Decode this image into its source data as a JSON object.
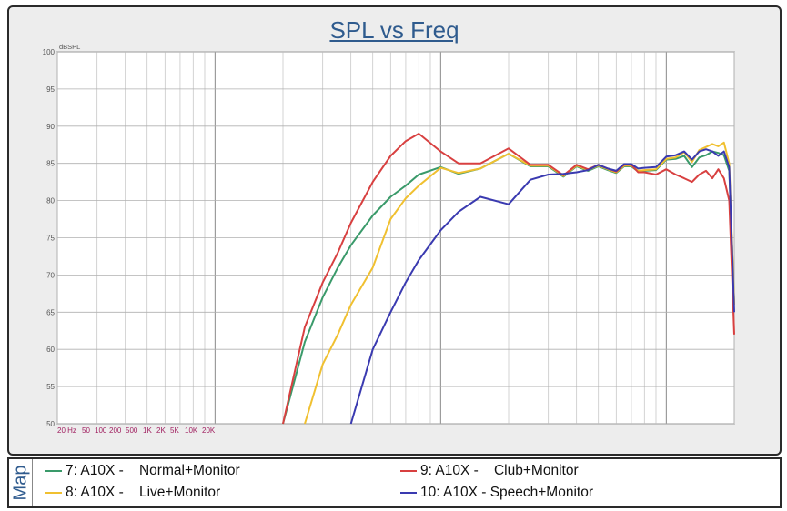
{
  "chart_data": {
    "type": "line",
    "title": "SPL vs Freq",
    "ylabel": "dBSPL",
    "ylim": [
      50,
      100
    ],
    "yticks": [
      "50",
      "55",
      "60",
      "65",
      "70",
      "75",
      "80",
      "85",
      "90",
      "95",
      "100"
    ],
    "xlim": [
      20,
      20000
    ],
    "xscale": "log",
    "xtick_labels": [
      "20 Hz",
      "50",
      "100",
      "200",
      "500",
      "1K",
      "2K",
      "5K",
      "10K",
      "20K"
    ],
    "grid": true,
    "legend_tab": "Map",
    "series": [
      {
        "name": "7: A10X -    Normal+Monitor",
        "color": "#3a9a6a",
        "x": [
          200,
          250,
          300,
          350,
          400,
          500,
          600,
          700,
          800,
          1000,
          1200,
          1500,
          2000,
          2500,
          3000,
          3500,
          4000,
          4500,
          5000,
          5500,
          6000,
          6500,
          7000,
          7500,
          8000,
          9000,
          10000,
          11000,
          12000,
          13000,
          14000,
          15000,
          16000,
          17000,
          18000,
          19000,
          20000
        ],
        "y": [
          50,
          61,
          67,
          71,
          74,
          78,
          80.5,
          82,
          83.5,
          84.5,
          83.6,
          84.3,
          86.3,
          84.6,
          84.6,
          83.2,
          84.6,
          84,
          84.6,
          84.1,
          83.7,
          84.6,
          84.6,
          83.9,
          84,
          84.1,
          85.5,
          85.6,
          86,
          84.5,
          85.8,
          86.1,
          86.6,
          86.4,
          86.1,
          84,
          66
        ]
      },
      {
        "name": "8: A10X -    Live+Monitor",
        "color": "#f0c030",
        "x": [
          250,
          300,
          350,
          400,
          500,
          600,
          700,
          800,
          1000,
          1200,
          1500,
          2000,
          2500,
          3000,
          3500,
          4000,
          4500,
          5000,
          5500,
          6000,
          6500,
          7000,
          7500,
          8000,
          9000,
          10000,
          11000,
          12000,
          13000,
          14000,
          15000,
          16000,
          17000,
          18000,
          19000,
          20000
        ],
        "y": [
          50,
          58,
          62,
          66,
          71,
          77.5,
          80.3,
          82,
          84.4,
          83.7,
          84.3,
          86.3,
          84.7,
          84.7,
          83.3,
          84.7,
          84.1,
          84.7,
          84.2,
          83.8,
          84.7,
          84.7,
          84,
          84.1,
          84.2,
          85.6,
          85.8,
          86.5,
          85.2,
          86.8,
          87.2,
          87.6,
          87.3,
          87.8,
          85,
          66
        ]
      },
      {
        "name": "9: A10X -    Club+Monitor",
        "color": "#d84040",
        "x": [
          200,
          250,
          300,
          350,
          400,
          500,
          600,
          700,
          800,
          1000,
          1200,
          1500,
          2000,
          2500,
          3000,
          3500,
          4000,
          4500,
          5000,
          5500,
          6000,
          6500,
          7000,
          7500,
          8000,
          9000,
          10000,
          11000,
          12000,
          13000,
          14000,
          15000,
          16000,
          17000,
          18000,
          19000,
          20000
        ],
        "y": [
          50,
          63,
          69,
          73,
          77,
          82.5,
          86,
          88,
          89,
          86.6,
          85,
          85,
          87,
          84.8,
          84.8,
          83.4,
          84.8,
          84.2,
          84.8,
          84.3,
          83.9,
          84.8,
          84.8,
          83.8,
          83.8,
          83.5,
          84.2,
          83.5,
          83,
          82.5,
          83.5,
          84,
          83,
          84.2,
          83,
          80,
          62
        ]
      },
      {
        "name": "10: A10X - Speech+Monitor",
        "color": "#3a3ab0",
        "x": [
          400,
          500,
          600,
          700,
          800,
          1000,
          1200,
          1500,
          2000,
          2500,
          3000,
          3500,
          4000,
          4500,
          5000,
          5500,
          6000,
          6500,
          7000,
          7500,
          8000,
          9000,
          10000,
          11000,
          12000,
          13000,
          14000,
          15000,
          16000,
          17000,
          18000,
          19000,
          20000
        ],
        "y": [
          50,
          60,
          65,
          69,
          72,
          76,
          78.5,
          80.5,
          79.5,
          82.8,
          83.5,
          83.6,
          83.8,
          84.1,
          84.8,
          84.3,
          84,
          84.9,
          84.9,
          84.3,
          84.4,
          84.5,
          85.9,
          86.1,
          86.6,
          85.5,
          86.6,
          86.9,
          86.6,
          86,
          86.6,
          84.5,
          65
        ]
      }
    ]
  }
}
